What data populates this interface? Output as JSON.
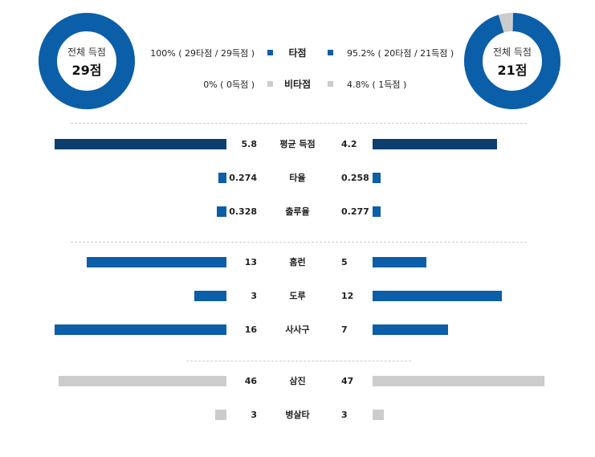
{
  "summary": {
    "left": {
      "label": "전체 득점",
      "value": "29점"
    },
    "right": {
      "label": "전체 득점",
      "value": "21점"
    }
  },
  "legend": [
    {
      "name": "타점",
      "left": "100% ( 29타점 / 29득점 )",
      "right": "95.2% ( 20타점 / 21득점 )",
      "color": "#0b5ea8"
    },
    {
      "name": "비타점",
      "left": "0% ( 0득점 )",
      "right": "4.8% ( 1득점 )",
      "color": "#cccccc"
    }
  ],
  "chart_data": {
    "type": "bar",
    "donuts": [
      {
        "side": "left",
        "rbi_pct": 100,
        "non_rbi_pct": 0
      },
      {
        "side": "right",
        "rbi_pct": 95.2,
        "non_rbi_pct": 4.8
      }
    ],
    "groups": [
      {
        "rows": [
          {
            "category": "평균 득점",
            "left": 5.8,
            "right": 4.2,
            "left_label": "5.8",
            "right_label": "4.2",
            "color": "#0d3f6e"
          },
          {
            "category": "타율",
            "left": 0.274,
            "right": 0.258,
            "left_label": "0.274",
            "right_label": "0.258",
            "color": "#0b5ea8"
          },
          {
            "category": "출루율",
            "left": 0.328,
            "right": 0.277,
            "left_label": "0.328",
            "right_label": "0.277",
            "color": "#0b5ea8"
          }
        ]
      },
      {
        "rows": [
          {
            "category": "홈런",
            "left": 13,
            "right": 5,
            "left_label": "13",
            "right_label": "5",
            "color": "#0b5ea8"
          },
          {
            "category": "도루",
            "left": 3,
            "right": 12,
            "left_label": "3",
            "right_label": "12",
            "color": "#0b5ea8"
          },
          {
            "category": "사사구",
            "left": 16,
            "right": 7,
            "left_label": "16",
            "right_label": "7",
            "color": "#0b5ea8"
          }
        ]
      },
      {
        "rows": [
          {
            "category": "삼진",
            "left": 46,
            "right": 47,
            "left_label": "46",
            "right_label": "47",
            "color": "#cccccc"
          },
          {
            "category": "병살타",
            "left": 3,
            "right": 3,
            "left_label": "3",
            "right_label": "3",
            "color": "#cccccc"
          }
        ]
      }
    ]
  }
}
